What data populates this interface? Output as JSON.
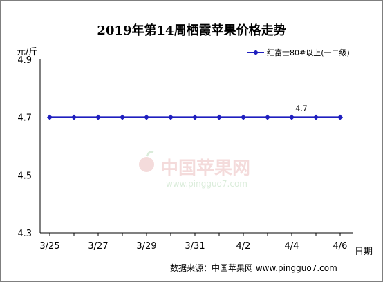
{
  "chart_data": {
    "type": "line",
    "title": "2019年第14周栖霞苹果价格走势",
    "ylabel": "元/斤",
    "xlabel": "日期",
    "ylim": [
      4.3,
      4.9
    ],
    "yticks": [
      "4.9",
      "4.7",
      "4.5",
      "4.3"
    ],
    "x": [
      "3/25",
      "3/26",
      "3/27",
      "3/28",
      "3/29",
      "3/30",
      "3/31",
      "4/1",
      "4/2",
      "4/3",
      "4/4",
      "4/5",
      "4/6"
    ],
    "xtick_labels": [
      "3/25",
      "3/27",
      "3/29",
      "3/31",
      "4/2",
      "4/4",
      "4/6"
    ],
    "series": [
      {
        "name": "红富士80#以上(一二级)",
        "values": [
          4.7,
          4.7,
          4.7,
          4.7,
          4.7,
          4.7,
          4.7,
          4.7,
          4.7,
          4.7,
          4.7,
          4.7,
          4.7
        ],
        "color": "#1f1fbf"
      }
    ],
    "annotations": [
      {
        "x": "4/4",
        "text": "4.7"
      }
    ],
    "legend": "top-right",
    "grid": false,
    "source": "数据来源：中国苹果网 www.pingguo7.com",
    "watermark": {
      "text": "中国苹果网",
      "url": "www.pingguo7.com"
    }
  }
}
